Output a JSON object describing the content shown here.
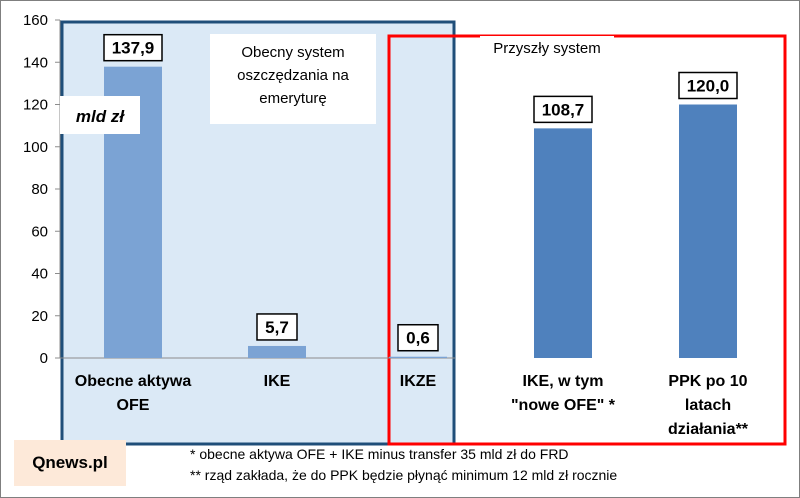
{
  "chart_data": {
    "type": "bar",
    "unit_label": "mld zł",
    "ylim": [
      0,
      160
    ],
    "y_ticks": [
      0,
      20,
      40,
      60,
      80,
      100,
      120,
      140,
      160
    ],
    "categories": [
      {
        "label": "Obecne aktywa OFE",
        "value": 137.9,
        "value_label": "137,9",
        "color": "#7ba3d4"
      },
      {
        "label": "IKE",
        "value": 5.7,
        "value_label": "5,7",
        "color": "#7ba3d4"
      },
      {
        "label": "IKZE",
        "value": 0.6,
        "value_label": "0,6",
        "color": "#7ba3d4"
      },
      {
        "label": "IKE, w tym \"nowe OFE\" *",
        "value": 108.7,
        "value_label": "108,7",
        "color": "#4f81bd"
      },
      {
        "label": "PPK po 10 latach działania**",
        "value": 120.0,
        "value_label": "120,0",
        "color": "#4f81bd"
      }
    ],
    "groups": [
      {
        "label": "Obecny system oszczędzania na emeryturę",
        "border_color": "#1f4e79",
        "bg": "#dbe9f6"
      },
      {
        "label": "Przyszły system",
        "border_color": "#ff0000"
      }
    ],
    "grid": false
  },
  "source": "Qnews.pl",
  "footnotes": [
    "* obecne aktywa OFE + IKE  minus transfer 35 mld zł do FRD",
    "** rząd zakłada, że do PPK będzie płynąć minimum 12 mld zł rocznie"
  ]
}
